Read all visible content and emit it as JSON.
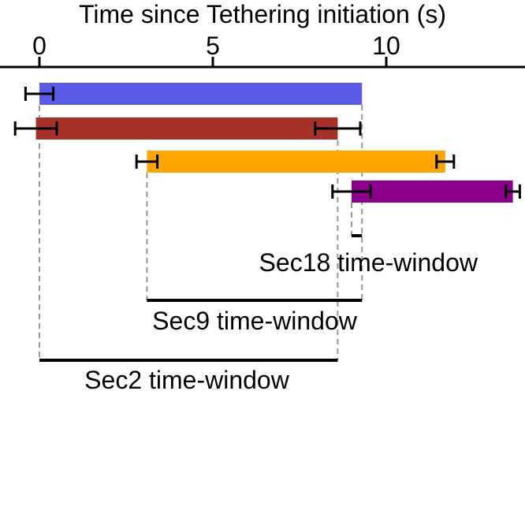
{
  "chart_data": {
    "type": "bar",
    "subtype": "horizontal-interval-timeline",
    "xlabel": "Time since Tethering initiation (s)",
    "x_axis": {
      "position": "top",
      "ticks": [
        0,
        5,
        10
      ],
      "range": [
        -1.15,
        14.0
      ],
      "units": "s"
    },
    "bars": [
      {
        "name": "blue-bar",
        "color": "#5b5be8",
        "start": 0.0,
        "end": 9.3,
        "error_start": 0.4,
        "error_end": null
      },
      {
        "name": "red-bar",
        "color": "#a53128",
        "start": -0.1,
        "end": 8.6,
        "error_start": 0.6,
        "error_end": 0.65
      },
      {
        "name": "orange-bar",
        "color": "#ffa502",
        "start": 3.1,
        "end": 11.7,
        "error_start": 0.3,
        "error_end": 0.25
      },
      {
        "name": "purple-bar",
        "color": "#8b008b",
        "start": 9.0,
        "end": 13.65,
        "error_start": 0.55,
        "error_end": 0.2
      }
    ],
    "windows": [
      {
        "label": "Sec18 time-window",
        "start": 9.0,
        "end": 9.3
      },
      {
        "label": "Sec9 time-window",
        "start": 3.1,
        "end": 9.3
      },
      {
        "label": "Sec2 time-window",
        "start": 0.0,
        "end": 8.6
      }
    ],
    "colors": {
      "axis": "#000000",
      "guide": "#979797",
      "bracket": "#000000",
      "error_bar": "#000000",
      "background": "#ffffff"
    }
  }
}
